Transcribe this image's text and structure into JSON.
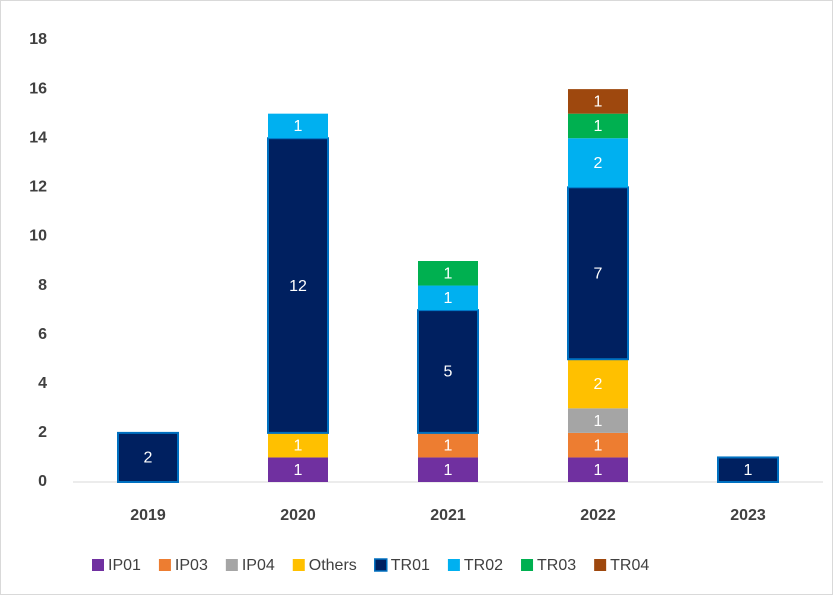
{
  "chart_data": {
    "type": "stacked-bar",
    "categories": [
      "2019",
      "2020",
      "2021",
      "2022",
      "2023"
    ],
    "series": [
      {
        "name": "IP01",
        "color": "#7030a0",
        "values": [
          null,
          1,
          1,
          1,
          null
        ]
      },
      {
        "name": "IP03",
        "color": "#ed7d31",
        "values": [
          null,
          null,
          1,
          1,
          null
        ]
      },
      {
        "name": "IP04",
        "color": "#a5a5a5",
        "values": [
          null,
          null,
          null,
          1,
          null
        ]
      },
      {
        "name": "Others",
        "color": "#ffc000",
        "values": [
          null,
          1,
          null,
          2,
          null
        ]
      },
      {
        "name": "TR01",
        "color": "#002060",
        "values": [
          2,
          12,
          5,
          7,
          1
        ]
      },
      {
        "name": "TR02",
        "color": "#00b0f0",
        "values": [
          null,
          1,
          1,
          2,
          null
        ]
      },
      {
        "name": "TR03",
        "color": "#00b050",
        "values": [
          null,
          null,
          1,
          1,
          null
        ]
      },
      {
        "name": "TR04",
        "color": "#9e480e",
        "values": [
          null,
          null,
          null,
          1,
          null
        ]
      }
    ],
    "ylim": [
      0,
      18
    ],
    "yticks": [
      0,
      2,
      4,
      6,
      8,
      10,
      12,
      14,
      16,
      18
    ],
    "grid": false,
    "legend": "bottom"
  }
}
